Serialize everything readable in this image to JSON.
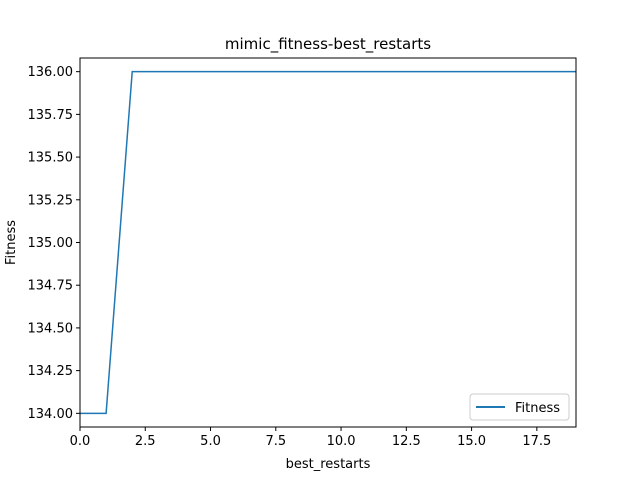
{
  "chart_data": {
    "type": "line",
    "title": "mimic_fitness-best_restarts",
    "xlabel": "best_restarts",
    "ylabel": "Fitness",
    "xlim": [
      0,
      19
    ],
    "ylim": [
      133.92,
      136.08
    ],
    "xticks": [
      0,
      2.5,
      5,
      7.5,
      10,
      12.5,
      15,
      17.5
    ],
    "xtick_labels": [
      "0.0",
      "2.5",
      "5.0",
      "7.5",
      "10.0",
      "12.5",
      "15.0",
      "17.5"
    ],
    "yticks": [
      134.0,
      134.25,
      134.5,
      134.75,
      135.0,
      135.25,
      135.5,
      135.75,
      136.0
    ],
    "ytick_labels": [
      "134.00",
      "134.25",
      "134.50",
      "134.75",
      "135.00",
      "135.25",
      "135.50",
      "135.75",
      "136.00"
    ],
    "grid": false,
    "legend_position": "lower-right",
    "series": [
      {
        "name": "Fitness",
        "color": "#1f77b4",
        "x": [
          0,
          1,
          2,
          3,
          4,
          5,
          6,
          7,
          8,
          9,
          10,
          11,
          12,
          13,
          14,
          15,
          16,
          17,
          18,
          19
        ],
        "values": [
          134,
          134,
          136,
          136,
          136,
          136,
          136,
          136,
          136,
          136,
          136,
          136,
          136,
          136,
          136,
          136,
          136,
          136,
          136,
          136
        ]
      }
    ]
  }
}
